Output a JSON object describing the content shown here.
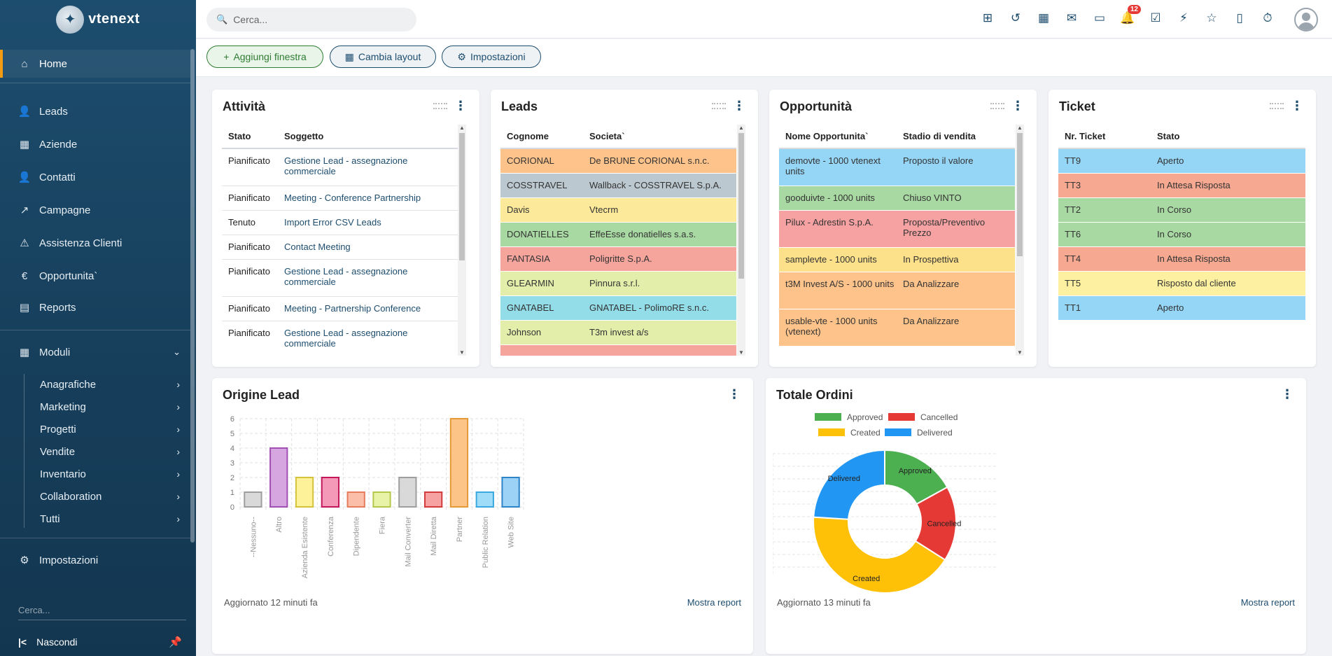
{
  "brand": {
    "logo_text": "vtenext"
  },
  "sidebar": {
    "main_items": [
      {
        "label": "Home",
        "icon": "home-icon"
      },
      {
        "label": "Leads",
        "icon": "user-icon"
      },
      {
        "label": "Aziende",
        "icon": "building-icon"
      },
      {
        "label": "Contatti",
        "icon": "user-icon"
      },
      {
        "label": "Campagne",
        "icon": "trend-icon"
      },
      {
        "label": "Assistenza Clienti",
        "icon": "warning-icon"
      },
      {
        "label": "Opportunita`",
        "icon": "euro-icon"
      },
      {
        "label": "Reports",
        "icon": "table-icon"
      }
    ],
    "modules_label": "Moduli",
    "sub_items": [
      "Anagrafiche",
      "Marketing",
      "Progetti",
      "Vendite",
      "Inventario",
      "Collaboration",
      "Tutti"
    ],
    "settings_label": "Impostazioni",
    "search_placeholder": "Cerca...",
    "hide_label": "Nascondi"
  },
  "topbar": {
    "search_placeholder": "Cerca...",
    "notification_count": "12"
  },
  "toolbar": {
    "add_window": "Aggiungi finestra",
    "change_layout": "Cambia layout",
    "settings": "Impostazioni"
  },
  "attivita": {
    "title": "Attività",
    "headers": [
      "Stato",
      "Soggetto"
    ],
    "rows": [
      [
        "Pianificato",
        "Gestione Lead - assegnazione commerciale"
      ],
      [
        "Pianificato",
        "Meeting - Conference Partnership"
      ],
      [
        "Tenuto",
        "Import Error CSV Leads"
      ],
      [
        "Pianificato",
        "Contact Meeting"
      ],
      [
        "Pianificato",
        "Gestione Lead - assegnazione commerciale"
      ],
      [
        "Pianificato",
        "Meeting - Partnership Conference"
      ],
      [
        "Pianificato",
        "Gestione Lead - assegnazione commerciale"
      ]
    ]
  },
  "leads": {
    "title": "Leads",
    "headers": [
      "Cognome",
      "Societa`"
    ],
    "rows": [
      {
        "cells": [
          "CORIONAL",
          "De BRUNE CORIONAL s.n.c."
        ],
        "color": "#fdc38a"
      },
      {
        "cells": [
          "COSSTRAVEL",
          "Wallback - COSSTRAVEL S.p.A."
        ],
        "color": "#bcc8cf"
      },
      {
        "cells": [
          "Davis",
          "Vtecrm"
        ],
        "color": "#fde99a"
      },
      {
        "cells": [
          "DONATIELLES",
          "EffeEsse donatielles s.a.s."
        ],
        "color": "#a9d9a3"
      },
      {
        "cells": [
          "FANTASIA",
          "Poligritte S.p.A."
        ],
        "color": "#f6a59d"
      },
      {
        "cells": [
          "GLEARMIN",
          "Pinnura s.r.l."
        ],
        "color": "#e3eeaa"
      },
      {
        "cells": [
          "GNATABEL",
          "GNATABEL - PolimoRE s.n.c."
        ],
        "color": "#93dde9"
      },
      {
        "cells": [
          "Johnson",
          "T3m invest a/s"
        ],
        "color": "#e3eeaa"
      },
      {
        "cells": [
          "",
          ""
        ],
        "color": "#f6a59d"
      }
    ]
  },
  "opportunita": {
    "title": "Opportunità",
    "headers": [
      "Nome Opportunita`",
      "Stadio di vendita"
    ],
    "rows": [
      {
        "cells": [
          "demovte - 1000 vtenext units",
          "Proposto il valore"
        ],
        "color": "#95d5f5"
      },
      {
        "cells": [
          "gooduivte - 1000 units",
          "Chiuso VINTO"
        ],
        "color": "#a9d9a3"
      },
      {
        "cells": [
          "Pilux - Adrestin S.p.A.",
          "Proposta/Preventivo Prezzo"
        ],
        "color": "#f6a2a2"
      },
      {
        "cells": [
          "samplevte - 1000 units",
          "In Prospettiva"
        ],
        "color": "#fde18a"
      },
      {
        "cells": [
          "t3M Invest A/S - 1000 units",
          "Da Analizzare"
        ],
        "color": "#fdc38a"
      },
      {
        "cells": [
          "usable-vte - 1000 units (vtenext)",
          "Da Analizzare"
        ],
        "color": "#fdc38a"
      }
    ]
  },
  "ticket": {
    "title": "Ticket",
    "headers": [
      "Nr. Ticket",
      "Stato"
    ],
    "rows": [
      {
        "cells": [
          "TT9",
          "Aperto"
        ],
        "color": "#95d5f5"
      },
      {
        "cells": [
          "TT3",
          "In Attesa Risposta"
        ],
        "color": "#f6a891"
      },
      {
        "cells": [
          "TT2",
          "In Corso"
        ],
        "color": "#a9d9a3"
      },
      {
        "cells": [
          "TT6",
          "In Corso"
        ],
        "color": "#a9d9a3"
      },
      {
        "cells": [
          "TT4",
          "In Attesa Risposta"
        ],
        "color": "#f6a891"
      },
      {
        "cells": [
          "TT5",
          "Risposto dal cliente"
        ],
        "color": "#fdf0a0"
      },
      {
        "cells": [
          "TT1",
          "Aperto"
        ],
        "color": "#95d5f5"
      }
    ]
  },
  "origine_lead": {
    "title": "Origine Lead",
    "updated": "Aggiornato 12 minuti fa",
    "link": "Mostra report"
  },
  "totale_ordini": {
    "title": "Totale Ordini",
    "updated": "Aggiornato 13 minuti fa",
    "link": "Mostra report"
  },
  "chart_data": [
    {
      "type": "bar",
      "title": "Origine Lead",
      "categories": [
        "--Nessuno--",
        "Altro",
        "Azienda Esistente",
        "Conferenza",
        "Dipendente",
        "Fiera",
        "Mail Converter",
        "Mail Diretta",
        "Partner",
        "Public Relation",
        "Web Site"
      ],
      "values": [
        1,
        4,
        2,
        2,
        1,
        1,
        2,
        1,
        6,
        1,
        2
      ],
      "colors": [
        "#d9d9d9",
        "#d6a6e0",
        "#fdf19a",
        "#f49ab8",
        "#fbbea8",
        "#e9f3a8",
        "#d9d9d9",
        "#f6a2a2",
        "#fdc487",
        "#9fdcf7",
        "#9bd2f5"
      ],
      "borders": [
        "#9e9e9e",
        "#a04fb3",
        "#d4c33a",
        "#c2185b",
        "#e57c5c",
        "#b5c74a",
        "#9e9e9e",
        "#d43c3c",
        "#e59a3a",
        "#3aa8e0",
        "#2f84c8"
      ],
      "ylim": [
        0,
        6
      ],
      "yticks": [
        0,
        1,
        2,
        3,
        4,
        5,
        6
      ],
      "grid": true
    },
    {
      "type": "pie",
      "title": "Totale Ordini",
      "labels": [
        "Approved",
        "Cancelled",
        "Created",
        "Delivered"
      ],
      "values": [
        17,
        17,
        42,
        24
      ],
      "colors": [
        "#4caf50",
        "#e53935",
        "#ffc107",
        "#2196f3"
      ],
      "legend": "top",
      "donut": true
    }
  ]
}
